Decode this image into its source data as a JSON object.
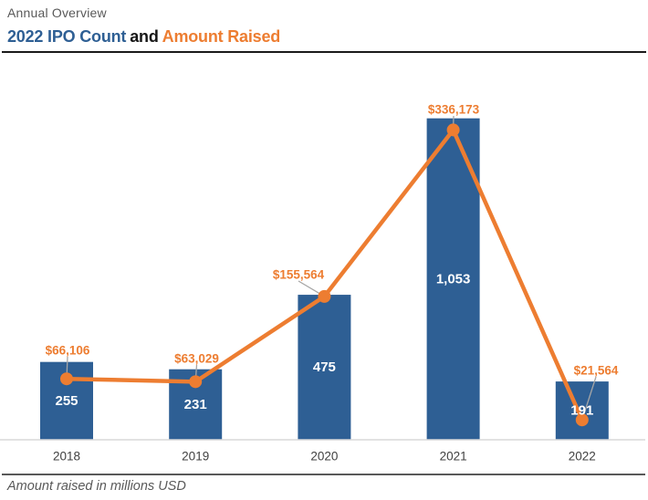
{
  "header": {
    "eyebrow": "Annual Overview",
    "title_part1": "2022 IPO Count",
    "title_part2": "and",
    "title_part3": "Amount Raised"
  },
  "footer": {
    "note": "Amount raised in millions USD"
  },
  "colors": {
    "bar": "#2E5F94",
    "line": "#ED7D31",
    "title_blue": "#2E5F94",
    "title_orange": "#ED7D31",
    "leader_line": "#A6A6A6",
    "axis_line": "#D9D9D9",
    "bar_label_text": "#FFFFFF",
    "tick_text": "#404040",
    "note_text": "#595959"
  },
  "chart_data": {
    "type": "bar",
    "subtype": "combo-bar-line",
    "title": "2022 IPO Count and Amount Raised",
    "categories": [
      "2018",
      "2019",
      "2020",
      "2021",
      "2022"
    ],
    "series": [
      {
        "name": "IPO Count",
        "type": "bar",
        "values": [
          255,
          231,
          475,
          1053,
          191
        ],
        "labels": [
          "255",
          "231",
          "475",
          "1,053",
          "191"
        ]
      },
      {
        "name": "Amount Raised",
        "type": "line",
        "values": [
          66106,
          63029,
          155564,
          336173,
          21564
        ],
        "labels": [
          "$66,106",
          "$63,029",
          "$155,564",
          "$336,173",
          "$21,564"
        ]
      }
    ],
    "xlabel": "",
    "ylabel": "",
    "note": "Amount raised in millions USD",
    "legend": false,
    "grid": false,
    "bar_axis_max": 1250,
    "line_axis_max": 400000
  }
}
